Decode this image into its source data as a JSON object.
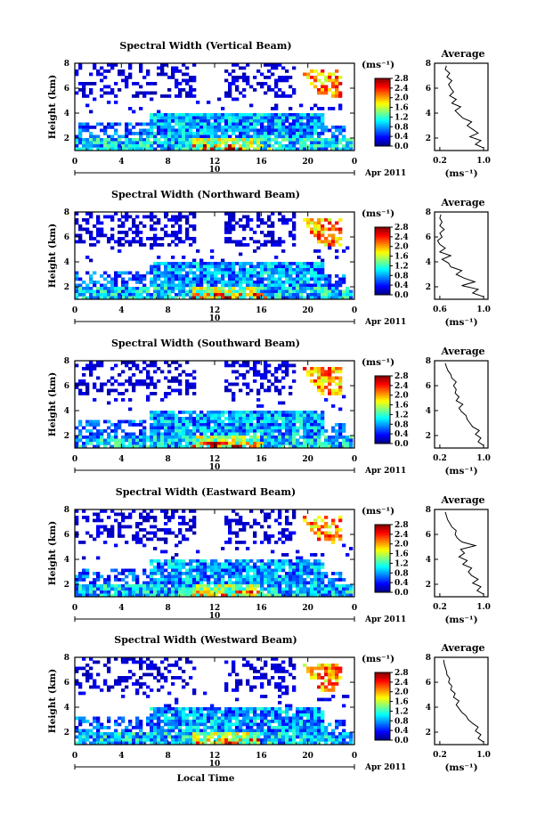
{
  "figure": {
    "x_axis_title": "Local Time",
    "date_label": "10",
    "month_label": "Apr 2011",
    "height_label": "Height (km)",
    "unit_label": "(ms⁻¹)",
    "average_title": "Average",
    "colorbar_ticks": [
      "2.8",
      "2.4",
      "2.0",
      "1.6",
      "1.2",
      "0.8",
      "0.4",
      "0.0"
    ]
  },
  "chart_data": [
    {
      "type": "heatmap",
      "title": "Spectral Width (Vertical Beam)",
      "xlabel": "Local Time",
      "ylabel": "Height (km)",
      "x_ticks": [
        "0",
        "4",
        "8",
        "12",
        "16",
        "20",
        "0"
      ],
      "y_ticks": [
        "2",
        "4",
        "6",
        "8"
      ],
      "xlim": [
        0,
        24
      ],
      "ylim": [
        1,
        8
      ],
      "colorbar": {
        "label": "(ms⁻¹)",
        "range": [
          0.0,
          2.8
        ],
        "ticks": [
          "2.8",
          "2.4",
          "2.0",
          "1.6",
          "1.2",
          "0.8",
          "0.4",
          "0.0"
        ]
      },
      "average_profile": {
        "title": "Average",
        "xlabel": "(ms⁻¹)",
        "x_ticks": [
          "0.2",
          "1.0"
        ],
        "y_ticks": [
          "2",
          "4",
          "6",
          "8"
        ],
        "heights": [
          1.2,
          1.5,
          1.8,
          2.1,
          2.4,
          2.7,
          3.0,
          3.3,
          3.6,
          3.9,
          4.2,
          4.5,
          4.8,
          5.1,
          5.4,
          5.7,
          6.0,
          6.3,
          6.6,
          6.9,
          7.2,
          7.5,
          7.8
        ],
        "values": [
          1.0,
          0.85,
          0.95,
          0.75,
          0.9,
          0.8,
          0.7,
          0.78,
          0.62,
          0.55,
          0.48,
          0.58,
          0.42,
          0.5,
          0.38,
          0.45,
          0.4,
          0.36,
          0.42,
          0.33,
          0.38,
          0.3,
          0.32
        ]
      }
    },
    {
      "type": "heatmap",
      "title": "Spectral Width (Northward Beam)",
      "xlabel": "Local Time",
      "ylabel": "Height (km)",
      "x_ticks": [
        "0",
        "4",
        "8",
        "12",
        "16",
        "20",
        "0"
      ],
      "y_ticks": [
        "2",
        "4",
        "6",
        "8"
      ],
      "xlim": [
        0,
        24
      ],
      "ylim": [
        1,
        8
      ],
      "colorbar": {
        "label": "(ms⁻¹)",
        "range": [
          0.0,
          2.8
        ],
        "ticks": [
          "2.8",
          "2.4",
          "2.0",
          "1.6",
          "1.2",
          "0.8",
          "0.4",
          "0.0"
        ]
      },
      "average_profile": {
        "title": "Average",
        "xlabel": "(ms⁻¹)",
        "x_ticks": [
          "0.6",
          "1.0"
        ],
        "y_ticks": [
          "2",
          "4",
          "6",
          "8"
        ],
        "heights": [
          1.2,
          1.5,
          1.8,
          2.1,
          2.4,
          2.7,
          3.0,
          3.3,
          3.6,
          3.9,
          4.2,
          4.5,
          4.8,
          5.1,
          5.4,
          5.7,
          6.0,
          6.3,
          6.6,
          6.9,
          7.2,
          7.5,
          7.8
        ],
        "values": [
          1.0,
          0.9,
          0.95,
          0.8,
          0.92,
          0.82,
          0.75,
          0.8,
          0.7,
          0.68,
          0.62,
          0.7,
          0.6,
          0.65,
          0.6,
          0.58,
          0.62,
          0.6,
          0.64,
          0.6,
          0.62,
          0.6,
          0.61
        ]
      }
    },
    {
      "type": "heatmap",
      "title": "Spectral Width (Southward Beam)",
      "xlabel": "Local Time",
      "ylabel": "Height (km)",
      "x_ticks": [
        "0",
        "4",
        "8",
        "12",
        "16",
        "20",
        "0"
      ],
      "y_ticks": [
        "2",
        "4",
        "6",
        "8"
      ],
      "xlim": [
        0,
        24
      ],
      "ylim": [
        1,
        8
      ],
      "colorbar": {
        "label": "(ms⁻¹)",
        "range": [
          0.0,
          2.8
        ],
        "ticks": [
          "2.8",
          "2.4",
          "2.0",
          "1.6",
          "1.2",
          "0.8",
          "0.4",
          "0.0"
        ]
      },
      "average_profile": {
        "title": "Average",
        "xlabel": "(ms⁻¹)",
        "x_ticks": [
          "0.2",
          "1.0"
        ],
        "y_ticks": [
          "2",
          "4",
          "6",
          "8"
        ],
        "heights": [
          1.2,
          1.5,
          1.8,
          2.1,
          2.4,
          2.7,
          3.0,
          3.3,
          3.6,
          3.9,
          4.2,
          4.5,
          4.8,
          5.1,
          5.4,
          5.7,
          6.0,
          6.3,
          6.6,
          6.9,
          7.2,
          7.5,
          7.8
        ],
        "values": [
          1.0,
          0.9,
          0.95,
          0.85,
          0.92,
          0.8,
          0.75,
          0.7,
          0.68,
          0.6,
          0.55,
          0.62,
          0.5,
          0.55,
          0.48,
          0.5,
          0.45,
          0.5,
          0.42,
          0.4,
          0.35,
          0.32,
          0.3
        ]
      }
    },
    {
      "type": "heatmap",
      "title": "Spectral Width (Eastward Beam)",
      "xlabel": "Local Time",
      "ylabel": "Height (km)",
      "x_ticks": [
        "0",
        "4",
        "8",
        "12",
        "16",
        "20",
        "0"
      ],
      "y_ticks": [
        "2",
        "4",
        "6",
        "8"
      ],
      "xlim": [
        0,
        24
      ],
      "ylim": [
        1,
        8
      ],
      "colorbar": {
        "label": "(ms⁻¹)",
        "range": [
          0.0,
          2.8
        ],
        "ticks": [
          "2.8",
          "2.4",
          "2.0",
          "1.6",
          "1.2",
          "0.8",
          "0.4",
          "0.0"
        ]
      },
      "average_profile": {
        "title": "Average",
        "xlabel": "(ms⁻¹)",
        "x_ticks": [
          "0.2",
          "1.0"
        ],
        "y_ticks": [
          "2",
          "4",
          "6",
          "8"
        ],
        "heights": [
          1.2,
          1.5,
          1.8,
          2.1,
          2.4,
          2.7,
          3.0,
          3.3,
          3.6,
          3.9,
          4.2,
          4.5,
          4.8,
          5.1,
          5.4,
          5.7,
          6.0,
          6.3,
          6.6,
          6.9,
          7.2,
          7.5,
          7.8
        ],
        "values": [
          1.0,
          0.88,
          0.95,
          0.8,
          0.9,
          0.78,
          0.72,
          0.78,
          0.62,
          0.7,
          0.55,
          0.65,
          0.58,
          0.85,
          0.6,
          0.52,
          0.48,
          0.5,
          0.42,
          0.38,
          0.34,
          0.32,
          0.3
        ]
      }
    },
    {
      "type": "heatmap",
      "title": "Spectral Width (Westward Beam)",
      "xlabel": "Local Time",
      "ylabel": "Height (km)",
      "x_ticks": [
        "0",
        "4",
        "8",
        "12",
        "16",
        "20",
        "0"
      ],
      "y_ticks": [
        "2",
        "4",
        "6",
        "8"
      ],
      "xlim": [
        0,
        24
      ],
      "ylim": [
        1,
        8
      ],
      "colorbar": {
        "label": "(ms⁻¹)",
        "range": [
          0.0,
          2.8
        ],
        "ticks": [
          "2.8",
          "2.4",
          "2.0",
          "1.6",
          "1.2",
          "0.8",
          "0.4",
          "0.0"
        ]
      },
      "average_profile": {
        "title": "Average",
        "xlabel": "(ms⁻¹)",
        "x_ticks": [
          "0.2",
          "1.0"
        ],
        "y_ticks": [
          "2",
          "4",
          "6",
          "8"
        ],
        "heights": [
          1.2,
          1.5,
          1.8,
          2.1,
          2.4,
          2.7,
          3.0,
          3.3,
          3.6,
          3.9,
          4.2,
          4.5,
          4.8,
          5.1,
          5.4,
          5.7,
          6.0,
          6.3,
          6.6,
          6.9,
          7.2,
          7.5,
          7.8
        ],
        "values": [
          1.0,
          0.9,
          0.95,
          0.85,
          0.9,
          0.8,
          0.72,
          0.68,
          0.6,
          0.55,
          0.5,
          0.55,
          0.45,
          0.48,
          0.4,
          0.42,
          0.36,
          0.38,
          0.33,
          0.32,
          0.3,
          0.28,
          0.27
        ]
      }
    }
  ]
}
